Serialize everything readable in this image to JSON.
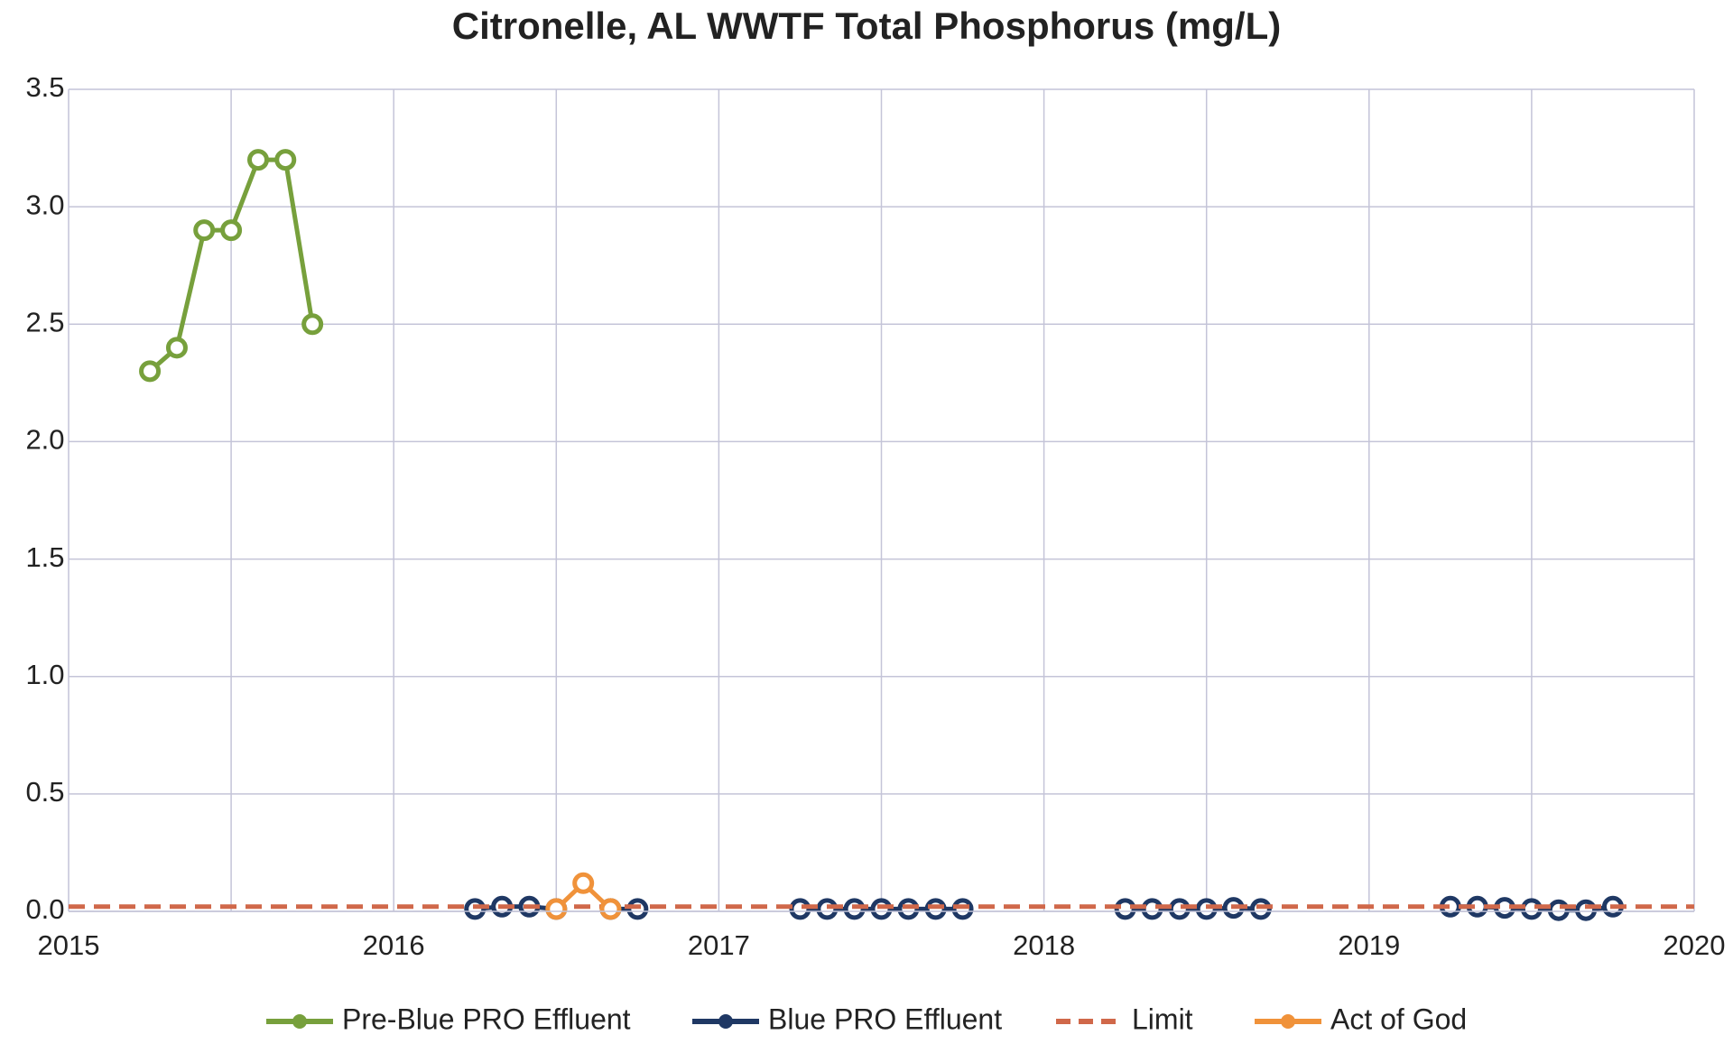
{
  "chart_data": {
    "type": "line",
    "title": "Citronelle, AL WWTF Total Phosphorus (mg/L)",
    "xlim": [
      2015,
      2020
    ],
    "xticks": [
      2015,
      2016,
      2017,
      2018,
      2019,
      2020
    ],
    "xgrid": [
      2015,
      2015.5,
      2016,
      2016.5,
      2017,
      2017.5,
      2018,
      2018.5,
      2019,
      2019.5,
      2020
    ],
    "ylim": [
      0,
      3.5
    ],
    "yticks": [
      {
        "value": 0,
        "label": "0.0"
      },
      0.5,
      {
        "value": 1,
        "label": "1.0"
      },
      1.5,
      {
        "value": 2,
        "label": "2.0"
      },
      2.5,
      {
        "value": 3,
        "label": "3.0"
      },
      3.5
    ],
    "grid": true,
    "legend": "bottom",
    "series": [
      {
        "name": "Pre-Blue PRO Effluent",
        "color": "#77a03c",
        "markers": true,
        "dash": false,
        "x": [
          2015.25,
          2015.333,
          2015.417,
          2015.5,
          2015.583,
          2015.667,
          2015.75
        ],
        "values": [
          2.3,
          2.4,
          2.9,
          2.9,
          3.2,
          3.2,
          2.5
        ]
      },
      {
        "name": "Blue PRO Effluent",
        "color": "#1f3864",
        "markers": true,
        "dash": false,
        "x": [
          2016.25,
          2016.333,
          2016.417,
          2016.5,
          2016.583,
          2016.667,
          2016.75,
          2017,
          2017.25,
          2017.333,
          2017.417,
          2017.5,
          2017.583,
          2017.667,
          2017.75,
          2018,
          2018.25,
          2018.333,
          2018.417,
          2018.5,
          2018.583,
          2018.667,
          2019,
          2019.25,
          2019.333,
          2019.417,
          2019.5,
          2019.583,
          2019.667,
          2019.75
        ],
        "values": [
          0.01,
          0.02,
          0.02,
          0.01,
          null,
          0.01,
          0.01,
          null,
          0.01,
          0.01,
          0.01,
          0.01,
          0.01,
          0.01,
          0.01,
          null,
          0.01,
          0.01,
          0.01,
          0.01,
          0.015,
          0.01,
          null,
          0.02,
          0.02,
          0.015,
          0.01,
          0.005,
          0.005,
          0.02
        ]
      },
      {
        "name": "Limit",
        "color": "#d0684a",
        "markers": false,
        "dash": true,
        "x": [
          2015,
          2020
        ],
        "values": [
          0.02,
          0.02
        ]
      },
      {
        "name": "Act of God",
        "color": "#f0923a",
        "markers": true,
        "dash": false,
        "x": [
          2016.5,
          2016.583,
          2016.667
        ],
        "values": [
          0.01,
          0.12,
          0.01
        ]
      }
    ]
  }
}
